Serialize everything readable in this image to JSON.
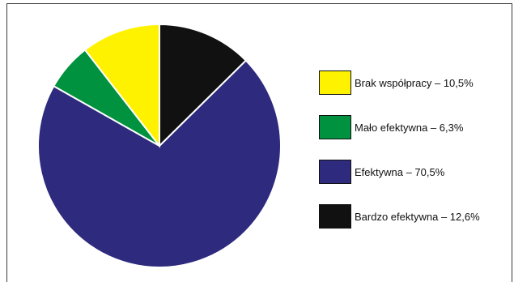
{
  "chart_data": {
    "type": "pie",
    "categories": [
      "Brak współpracy",
      "Mało efektywna",
      "Efektywna",
      "Bardzo efektywna"
    ],
    "values": [
      10.5,
      6.3,
      70.5,
      12.6
    ],
    "colors": [
      "#fff200",
      "#00923f",
      "#2e2a7d",
      "#111111"
    ],
    "legend": {
      "placement": "right",
      "entries": [
        "Brak współpracy – 10,5%",
        "Mało efektywna – 6,3%",
        "Efektywna – 70,5%",
        "Bardzo efektywna – 12,6%"
      ]
    },
    "start_angle_deg": 0,
    "direction": "clockwise",
    "order": [
      3,
      2,
      1,
      0
    ]
  }
}
